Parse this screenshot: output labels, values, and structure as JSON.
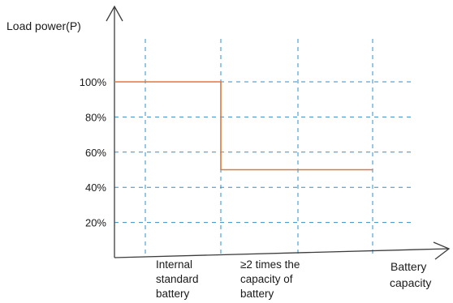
{
  "chart_data": {
    "type": "line",
    "title": "",
    "ylabel": "Load power(P)",
    "xlabel": [
      "Battery",
      "capacity"
    ],
    "y_ticks": [
      "100%",
      "80%",
      "60%",
      "40%",
      "20%"
    ],
    "y_tick_values": [
      100,
      80,
      60,
      40,
      20
    ],
    "ylim": [
      0,
      125
    ],
    "x_categories": [
      [
        "Internal",
        "standard",
        "battery"
      ],
      [
        "≥2 times the",
        "capacity of",
        "battery"
      ]
    ],
    "grid": true,
    "series": [
      {
        "points": [
          {
            "x": "start",
            "y": 100
          },
          {
            "x": "Internal standard battery",
            "y": 100
          },
          {
            "x": "Internal standard battery",
            "y": 50
          },
          {
            "x": "≥2 times the capacity of battery",
            "y": 50
          },
          {
            "x": "end",
            "y": 50
          }
        ]
      }
    ],
    "colors": {
      "axis": "#3c3c3c",
      "grid": "#2f8fcf",
      "series": "#e0783e"
    }
  }
}
